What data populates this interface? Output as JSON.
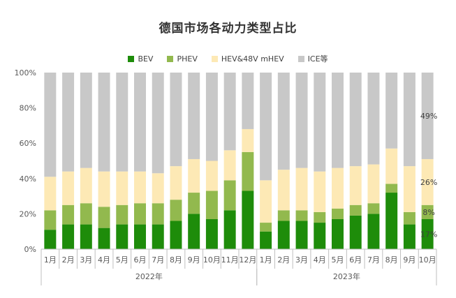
{
  "chart_data": {
    "type": "bar",
    "stacked": true,
    "title": "德国市场各动力类型占比",
    "categories": [
      "1月",
      "2月",
      "3月",
      "4月",
      "5月",
      "6月",
      "7月",
      "8月",
      "9月",
      "10月",
      "11月",
      "12月",
      "1月",
      "2月",
      "3月",
      "4月",
      "5月",
      "6月",
      "7月",
      "8月",
      "9月",
      "10月"
    ],
    "groups": [
      {
        "label": "2022年",
        "count": 12
      },
      {
        "label": "2023年",
        "count": 10
      }
    ],
    "ylim": [
      0,
      100
    ],
    "yticks": [
      "0%",
      "20%",
      "40%",
      "60%",
      "80%",
      "100%"
    ],
    "series": [
      {
        "name": "BEV",
        "color": "#1e8c0a",
        "values": [
          11,
          14,
          14,
          12,
          14,
          14,
          14,
          16,
          20,
          17,
          22,
          33,
          10,
          16,
          16,
          15,
          17,
          19,
          20,
          32,
          14,
          17
        ]
      },
      {
        "name": "PHEV",
        "color": "#92b94e",
        "values": [
          11,
          11,
          12,
          12,
          11,
          12,
          12,
          12,
          12,
          16,
          17,
          22,
          5,
          6,
          6,
          6,
          6,
          6,
          6,
          5,
          7,
          8
        ]
      },
      {
        "name": "HEV&48V mHEV",
        "color": "#fde9b5",
        "values": [
          19,
          19,
          20,
          20,
          19,
          18,
          17,
          19,
          19,
          17,
          17,
          13,
          24,
          23,
          24,
          23,
          23,
          22,
          22,
          20,
          26,
          26
        ]
      },
      {
        "name": "ICE等",
        "color": "#c8c8c8",
        "values": [
          59,
          56,
          54,
          56,
          56,
          56,
          57,
          53,
          49,
          50,
          44,
          32,
          61,
          55,
          54,
          56,
          54,
          53,
          52,
          43,
          53,
          49
        ]
      }
    ],
    "annotations": [
      {
        "category_index": 21,
        "series": "ICE等",
        "label": "49%"
      },
      {
        "category_index": 21,
        "series": "HEV&48V mHEV",
        "label": "26%"
      },
      {
        "category_index": 21,
        "series": "PHEV",
        "label": "8%"
      },
      {
        "category_index": 21,
        "series": "BEV",
        "label": "17%"
      }
    ],
    "grid": false,
    "legend_position": "top"
  }
}
